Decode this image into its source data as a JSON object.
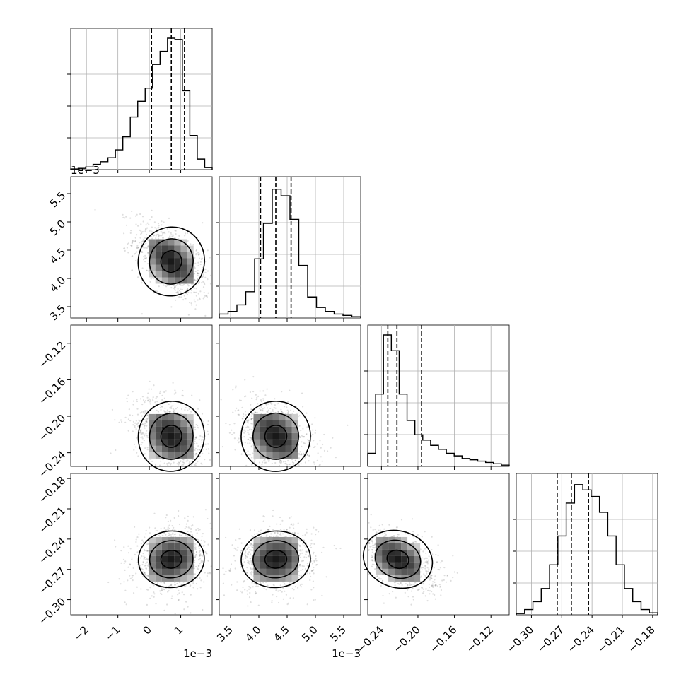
{
  "chart_data": {
    "type": "corner",
    "grid": true,
    "quantiles": [
      0.16,
      0.5,
      0.84
    ],
    "offset_label": "1e−3",
    "variables": [
      {
        "range": [
          -2.5,
          2.0
        ],
        "ticks": [
          -2,
          -1,
          0,
          1
        ],
        "tick_labels": [
          "−2",
          "−1",
          "0",
          "1"
        ],
        "offset": "1e−3",
        "quantile_values": [
          0.07,
          0.7,
          1.12
        ],
        "hist": [
          0.005,
          0.01,
          0.02,
          0.04,
          0.06,
          0.09,
          0.15,
          0.25,
          0.4,
          0.52,
          0.62,
          0.8,
          0.9,
          1.0,
          0.99,
          0.6,
          0.26,
          0.08,
          0.015
        ]
      },
      {
        "range": [
          3.3,
          5.8
        ],
        "ticks": [
          3.5,
          4.0,
          4.5,
          5.0,
          5.5
        ],
        "tick_labels": [
          "3.5",
          "4.0",
          "4.5",
          "5.0",
          "5.5"
        ],
        "offset": "1e−3",
        "quantile_values": [
          4.03,
          4.3,
          4.57
        ],
        "hist": [
          0.03,
          0.05,
          0.1,
          0.2,
          0.45,
          0.72,
          0.98,
          0.93,
          0.75,
          0.4,
          0.16,
          0.08,
          0.05,
          0.03,
          0.02,
          0.01
        ]
      },
      {
        "range": [
          -0.255,
          -0.1
        ],
        "ticks": [
          -0.24,
          -0.2,
          -0.16,
          -0.12
        ],
        "tick_labels": [
          "−0.24",
          "−0.20",
          "−0.16",
          "−0.12"
        ],
        "offset": "",
        "quantile_values": [
          -0.233,
          -0.223,
          -0.196
        ],
        "hist": [
          0.1,
          0.55,
          1.0,
          0.88,
          0.55,
          0.35,
          0.24,
          0.2,
          0.16,
          0.13,
          0.1,
          0.08,
          0.06,
          0.05,
          0.04,
          0.03,
          0.02,
          0.01
        ]
      },
      {
        "range": [
          -0.315,
          -0.175
        ],
        "ticks": [
          -0.3,
          -0.27,
          -0.24,
          -0.21,
          -0.18
        ],
        "tick_labels": [
          "−0.30",
          "−0.27",
          "−0.24",
          "−0.21",
          "−0.18"
        ],
        "y_tick_labels": [
          "−0.18",
          "−0.21",
          "−0.24",
          "−0.27",
          "−0.30"
        ],
        "offset": "",
        "quantile_values": [
          -0.2745,
          -0.2605,
          -0.2435
        ],
        "hist": [
          0.01,
          0.04,
          0.1,
          0.2,
          0.38,
          0.6,
          0.85,
          0.99,
          0.95,
          0.9,
          0.78,
          0.6,
          0.38,
          0.2,
          0.1,
          0.04,
          0.015
        ]
      }
    ],
    "pairs": [
      {
        "row": 1,
        "col": 0,
        "mean": [
          0.7,
          4.3
        ],
        "sd": [
          0.6,
          0.35
        ],
        "rho": -0.55
      },
      {
        "row": 2,
        "col": 0,
        "mean": [
          0.7,
          -0.222
        ],
        "sd": [
          0.6,
          0.022
        ],
        "rho": -0.35
      },
      {
        "row": 2,
        "col": 1,
        "mean": [
          4.3,
          -0.222
        ],
        "sd": [
          0.35,
          0.022
        ],
        "rho": -0.4
      },
      {
        "row": 3,
        "col": 0,
        "mean": [
          0.7,
          -0.26
        ],
        "sd": [
          0.6,
          0.016
        ],
        "rho": 0.15
      },
      {
        "row": 3,
        "col": 1,
        "mean": [
          4.3,
          -0.26
        ],
        "sd": [
          0.35,
          0.016
        ],
        "rho": 0.1
      },
      {
        "row": 3,
        "col": 2,
        "mean": [
          -0.222,
          -0.26
        ],
        "sd": [
          0.022,
          0.016
        ],
        "rho": -0.5
      }
    ]
  }
}
